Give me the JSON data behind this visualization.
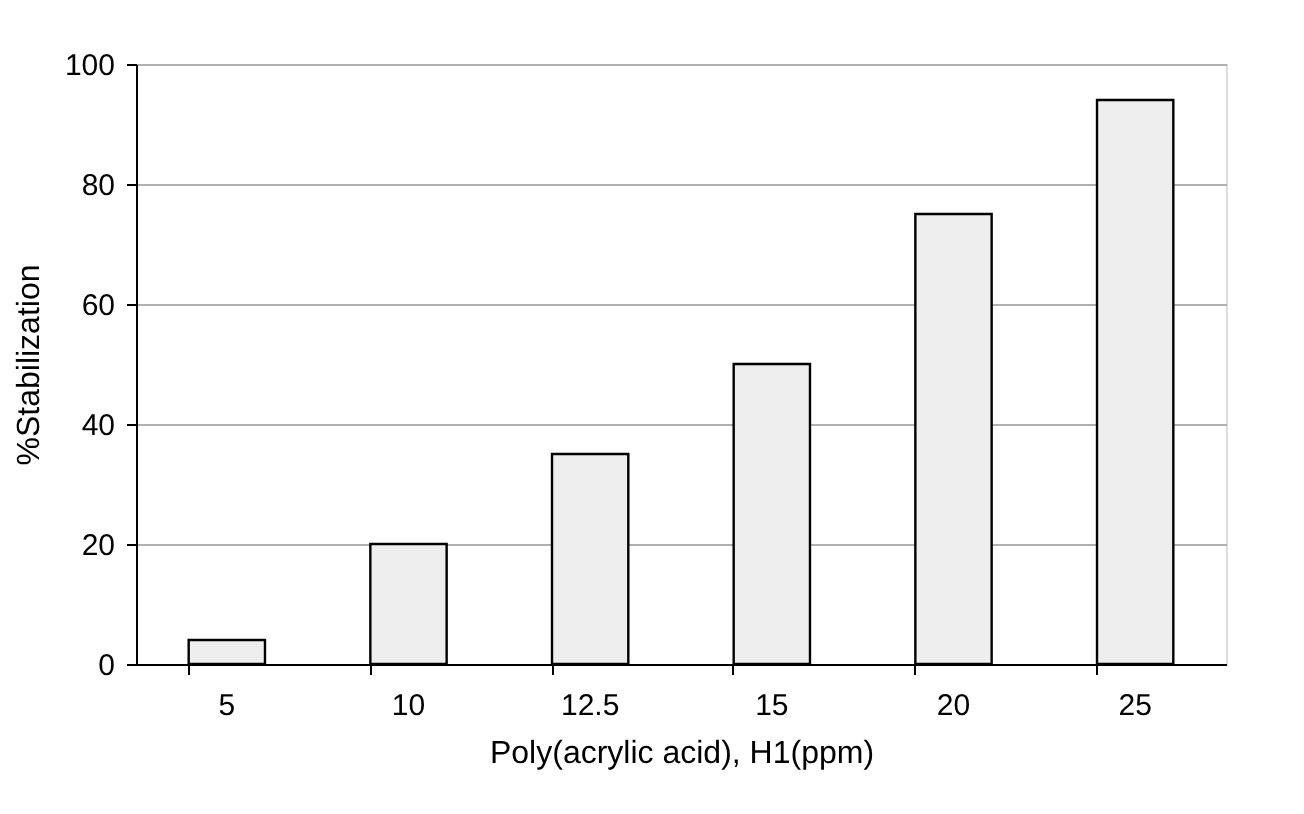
{
  "chart_data": {
    "type": "bar",
    "xlabel": "Poly(acrylic acid), H1(ppm)",
    "ylabel": "%Stabilization",
    "categories": [
      "5",
      "10",
      "12.5",
      "15",
      "20",
      "25"
    ],
    "values": [
      4,
      20,
      35,
      50,
      75,
      94
    ],
    "color": "#eeeeee",
    "ylim": [
      0,
      100
    ],
    "yticks": [
      0,
      20,
      40,
      60,
      80,
      100
    ],
    "grid": "y"
  }
}
